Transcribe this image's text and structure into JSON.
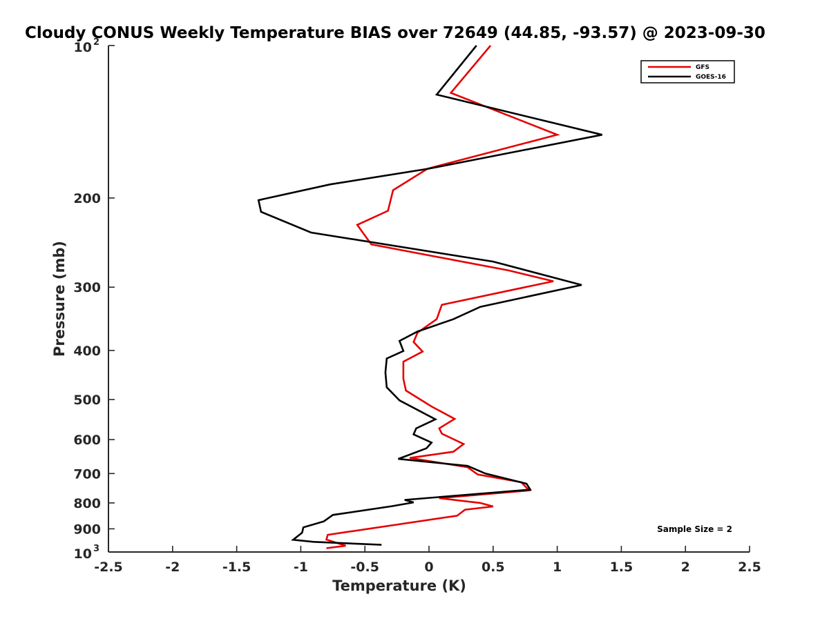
{
  "chart_data": {
    "type": "line",
    "title": "Cloudy CONUS Weekly Temperature BIAS over 72649 (44.85, -93.57) @ 2023-09-30",
    "xlabel": "Temperature (K)",
    "ylabel": "Pressure (mb)",
    "xlim": [
      -2.5,
      2.5
    ],
    "ylim": [
      100,
      1000
    ],
    "y_scale": "log",
    "y_reversed": true,
    "grid": false,
    "legend_position": "top-right",
    "x_ticks": [
      {
        "value": -2.5,
        "label": "-2.5"
      },
      {
        "value": -2,
        "label": "-2"
      },
      {
        "value": -1.5,
        "label": "-1.5"
      },
      {
        "value": -1,
        "label": "-1"
      },
      {
        "value": -0.5,
        "label": "-0.5"
      },
      {
        "value": 0,
        "label": "0"
      },
      {
        "value": 0.5,
        "label": "0.5"
      },
      {
        "value": 1,
        "label": "1"
      },
      {
        "value": 1.5,
        "label": "1.5"
      },
      {
        "value": 2,
        "label": "2"
      },
      {
        "value": 2.5,
        "label": "2.5"
      }
    ],
    "y_ticks": [
      {
        "value": 100,
        "label": "10",
        "sup": "2"
      },
      {
        "value": 200,
        "label": "200"
      },
      {
        "value": 300,
        "label": "300"
      },
      {
        "value": 400,
        "label": "400"
      },
      {
        "value": 500,
        "label": "500"
      },
      {
        "value": 600,
        "label": "600"
      },
      {
        "value": 700,
        "label": "700"
      },
      {
        "value": 800,
        "label": "800"
      },
      {
        "value": 900,
        "label": "900"
      },
      {
        "value": 1000,
        "label": "10",
        "sup": "3"
      }
    ],
    "series": [
      {
        "name": "GFS",
        "color": "#e60000",
        "points": [
          [
            0.48,
            100
          ],
          [
            0.17,
            124
          ],
          [
            1.0,
            150
          ],
          [
            -0.01,
            175
          ],
          [
            -0.28,
            193
          ],
          [
            -0.32,
            212
          ],
          [
            -0.56,
            226
          ],
          [
            -0.45,
            247
          ],
          [
            0.62,
            278
          ],
          [
            0.97,
            292
          ],
          [
            0.1,
            325
          ],
          [
            0.06,
            347
          ],
          [
            -0.09,
            369
          ],
          [
            -0.12,
            385
          ],
          [
            -0.05,
            402
          ],
          [
            -0.2,
            421
          ],
          [
            -0.2,
            455
          ],
          [
            -0.18,
            480
          ],
          [
            0.02,
            516
          ],
          [
            0.2,
            546
          ],
          [
            0.08,
            570
          ],
          [
            0.1,
            584
          ],
          [
            0.27,
            612
          ],
          [
            0.19,
            634
          ],
          [
            -0.15,
            652
          ],
          [
            0.3,
            680
          ],
          [
            0.38,
            703
          ],
          [
            0.72,
            728
          ],
          [
            0.78,
            756
          ],
          [
            0.08,
            783
          ],
          [
            0.4,
            800
          ],
          [
            0.5,
            813
          ],
          [
            0.28,
            825
          ],
          [
            0.22,
            848
          ],
          [
            -0.28,
            885
          ],
          [
            -0.79,
            925
          ],
          [
            -0.8,
            945
          ],
          [
            -0.65,
            972
          ],
          [
            -0.8,
            983
          ]
        ]
      },
      {
        "name": "GOES-16",
        "color": "#000000",
        "points": [
          [
            0.37,
            100
          ],
          [
            0.06,
            125
          ],
          [
            1.35,
            150
          ],
          [
            0.0,
            175
          ],
          [
            -0.77,
            188
          ],
          [
            -1.33,
            202
          ],
          [
            -1.31,
            213
          ],
          [
            -0.92,
            234
          ],
          [
            0.5,
            267
          ],
          [
            1.19,
            297
          ],
          [
            0.4,
            328
          ],
          [
            0.19,
            347
          ],
          [
            -0.09,
            367
          ],
          [
            -0.23,
            383
          ],
          [
            -0.2,
            401
          ],
          [
            -0.33,
            415
          ],
          [
            -0.34,
            442
          ],
          [
            -0.33,
            473
          ],
          [
            -0.23,
            502
          ],
          [
            0.05,
            547
          ],
          [
            -0.1,
            570
          ],
          [
            -0.12,
            586
          ],
          [
            0.02,
            608
          ],
          [
            -0.02,
            624
          ],
          [
            -0.24,
            655
          ],
          [
            0.3,
            676
          ],
          [
            0.44,
            700
          ],
          [
            0.76,
            733
          ],
          [
            0.79,
            753
          ],
          [
            -0.19,
            789
          ],
          [
            -0.12,
            798
          ],
          [
            -0.29,
            812
          ],
          [
            -0.75,
            845
          ],
          [
            -0.82,
            870
          ],
          [
            -0.98,
            894
          ],
          [
            -0.99,
            916
          ],
          [
            -1.06,
            946
          ],
          [
            -0.9,
            955
          ],
          [
            -0.37,
            968
          ]
        ]
      }
    ],
    "annotations": [
      {
        "text": "Sample Size = 2",
        "position": "bottom-right"
      }
    ]
  }
}
